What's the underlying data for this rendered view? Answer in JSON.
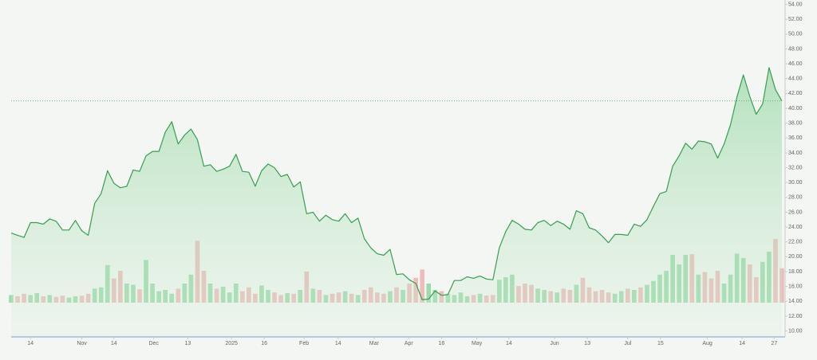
{
  "chart_data": {
    "type": "line",
    "values": [
      23.2,
      22.9,
      22.6,
      24.6,
      24.6,
      24.4,
      25.1,
      24.8,
      23.6,
      23.6,
      24.9,
      23.5,
      22.9,
      27.2,
      28.5,
      31.6,
      29.9,
      29.3,
      29.5,
      31.7,
      31.5,
      33.6,
      34.2,
      34.2,
      36.8,
      38.2,
      35.2,
      36.4,
      37.2,
      35.8,
      32.2,
      32.4,
      31.5,
      31.8,
      32.2,
      33.8,
      31.5,
      31.4,
      29.5,
      31.6,
      32.5,
      32.0,
      30.8,
      31.1,
      29.4,
      30.1,
      25.8,
      26.0,
      24.8,
      25.6,
      25.0,
      24.8,
      25.8,
      24.6,
      25.2,
      22.4,
      21.2,
      20.4,
      20.2,
      21.0,
      17.6,
      17.7,
      16.9,
      16.4,
      14.2,
      14.3,
      15.4,
      14.8,
      14.9,
      16.8,
      16.8,
      17.3,
      17.1,
      17.4,
      17.0,
      16.9,
      21.2,
      23.4,
      24.9,
      24.4,
      23.7,
      23.6,
      24.6,
      24.9,
      24.2,
      24.8,
      24.4,
      23.7,
      26.2,
      25.8,
      23.9,
      23.6,
      22.8,
      21.9,
      23.0,
      23.0,
      22.9,
      24.4,
      24.1,
      25.0,
      26.8,
      28.5,
      28.8,
      32.2,
      33.6,
      35.3,
      34.5,
      35.6,
      35.5,
      35.2,
      33.3,
      35.2,
      37.8,
      41.5,
      44.5,
      41.6,
      39.2,
      40.6,
      45.5,
      42.5,
      41.0
    ],
    "color": "#3a9d52",
    "volume": [
      12,
      10,
      14,
      12,
      15,
      10,
      12,
      9,
      11,
      8,
      10,
      11,
      14,
      22,
      24,
      59,
      38,
      50,
      30,
      28,
      21,
      67,
      30,
      18,
      20,
      14,
      22,
      30,
      44,
      97,
      50,
      30,
      22,
      25,
      16,
      30,
      18,
      24,
      14,
      27,
      20,
      16,
      12,
      15,
      14,
      20,
      49,
      22,
      20,
      12,
      14,
      16,
      18,
      14,
      12,
      20,
      24,
      16,
      14,
      18,
      24,
      20,
      30,
      39,
      52,
      30,
      20,
      18,
      14,
      12,
      16,
      10,
      12,
      14,
      11,
      12,
      36,
      40,
      44,
      26,
      30,
      28,
      22,
      20,
      18,
      16,
      22,
      20,
      28,
      39,
      24,
      18,
      20,
      16,
      14,
      18,
      22,
      20,
      24,
      28,
      34,
      44,
      50,
      75,
      60,
      75,
      76,
      44,
      48,
      38,
      50,
      30,
      44,
      77,
      70,
      60,
      40,
      64,
      80,
      100,
      54
    ],
    "y2lim": [
      0,
      100
    ],
    "up_color": "#8fd3a0",
    "down_color": "#eab3b0",
    "xlim": [
      0,
      120
    ],
    "xticks": [
      {
        "value": 3,
        "label": "14"
      },
      {
        "value": 11,
        "label": "Nov"
      },
      {
        "value": 16,
        "label": "14"
      },
      {
        "value": 22.2,
        "label": "Dec"
      },
      {
        "value": 27.5,
        "label": "13"
      },
      {
        "value": 34.3,
        "label": "2025"
      },
      {
        "value": 39.4,
        "label": "16"
      },
      {
        "value": 45.6,
        "label": "Feb"
      },
      {
        "value": 50.9,
        "label": "14"
      },
      {
        "value": 56.5,
        "label": "Mar"
      },
      {
        "value": 61.9,
        "label": "Apr"
      },
      {
        "value": 67,
        "label": "16"
      },
      {
        "value": 72.5,
        "label": "May"
      },
      {
        "value": 77.5,
        "label": "14"
      },
      {
        "value": 84.6,
        "label": "Jun"
      },
      {
        "value": 89.7,
        "label": "13"
      },
      {
        "value": 96,
        "label": "Jul"
      },
      {
        "value": 101.1,
        "label": "15"
      },
      {
        "value": 108.4,
        "label": "Aug"
      },
      {
        "value": 113.8,
        "label": "14"
      },
      {
        "value": 118.8,
        "label": "27"
      }
    ],
    "ylim": [
      9.2,
      54.6
    ],
    "yticks": [
      {
        "value": 10,
        "label": "10.00"
      },
      {
        "value": 12,
        "label": "12.00"
      },
      {
        "value": 14,
        "label": "14.00"
      },
      {
        "value": 16,
        "label": "16.00"
      },
      {
        "value": 18,
        "label": "18.00"
      },
      {
        "value": 20,
        "label": "20.00"
      },
      {
        "value": 22,
        "label": "22.00"
      },
      {
        "value": 24,
        "label": "24.00"
      },
      {
        "value": 26,
        "label": "26.00"
      },
      {
        "value": 28,
        "label": "28.00"
      },
      {
        "value": 30,
        "label": "30.00"
      },
      {
        "value": 32,
        "label": "32.00"
      },
      {
        "value": 34,
        "label": "34.00"
      },
      {
        "value": 36,
        "label": "36.00"
      },
      {
        "value": 38,
        "label": "38.00"
      },
      {
        "value": 40,
        "label": "40.00"
      },
      {
        "value": 42,
        "label": "42.00"
      },
      {
        "value": 44,
        "label": "44.00"
      },
      {
        "value": 46,
        "label": "46.00"
      },
      {
        "value": 48,
        "label": "48.00"
      },
      {
        "value": 50,
        "label": "50.00"
      },
      {
        "value": 52,
        "label": "52.00"
      },
      {
        "value": 54,
        "label": "54.00"
      }
    ],
    "last_price_line": true
  }
}
